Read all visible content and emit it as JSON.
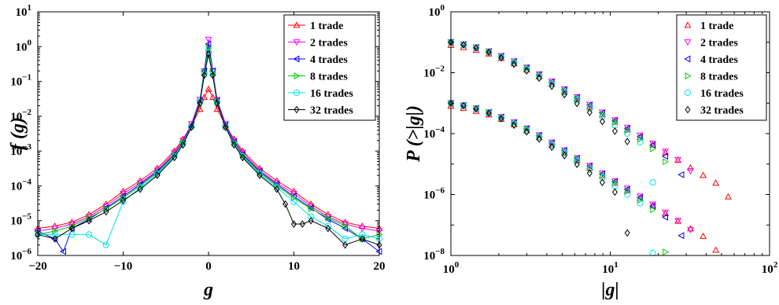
{
  "chart_data": [
    {
      "type": "line",
      "xlabel": "g",
      "ylabel": "f (g)",
      "xlim": [
        -20,
        20
      ],
      "ylim_log10": [
        -6,
        1
      ],
      "y_scale": "log",
      "x_tick_labels": [
        "−20",
        "−10",
        "0",
        "10",
        "20"
      ],
      "y_tick_labels": [
        "10",
        "10",
        "10",
        "10",
        "10",
        "10",
        "10",
        "10"
      ],
      "y_tick_exponents": [
        "−6",
        "−5",
        "−4",
        "−3",
        "−2",
        "−1",
        "0",
        "1"
      ],
      "legend_position": "top-right",
      "series": [
        {
          "name": "1 trade",
          "color": "#ff0000",
          "marker": "triangle-up",
          "x": [
            -20,
            -18,
            -16,
            -14,
            -12,
            -10,
            -8,
            -6,
            -4,
            -3,
            -2,
            -1,
            -0.5,
            0,
            0.5,
            1,
            2,
            3,
            4,
            6,
            8,
            10,
            12,
            14,
            16,
            18,
            20
          ],
          "y": [
            6e-06,
            7e-06,
            9e-06,
            1.5e-05,
            3e-05,
            7e-05,
            0.00014,
            0.00032,
            0.001,
            0.0022,
            0.0055,
            0.016,
            0.035,
            0.06,
            0.035,
            0.016,
            0.0055,
            0.0022,
            0.001,
            0.00032,
            0.00014,
            7e-05,
            3e-05,
            1.5e-05,
            9e-06,
            7e-06,
            6e-06
          ]
        },
        {
          "name": "2 trades",
          "color": "#ff00ff",
          "marker": "triangle-down",
          "x": [
            -20,
            -18,
            -16,
            -14,
            -12,
            -10,
            -8,
            -6,
            -4,
            -3,
            -2,
            -1,
            -0.5,
            0,
            0.5,
            1,
            2,
            3,
            4,
            6,
            8,
            10,
            12,
            14,
            16,
            18,
            20
          ],
          "y": [
            5e-06,
            6e-06,
            8e-06,
            1.3e-05,
            2.6e-05,
            6e-05,
            0.00012,
            0.00028,
            0.0009,
            0.002,
            0.006,
            0.03,
            0.2,
            1.6,
            0.2,
            0.03,
            0.006,
            0.002,
            0.0009,
            0.00028,
            0.00012,
            6e-05,
            2.6e-05,
            1.3e-05,
            8e-06,
            6e-06,
            5e-06
          ]
        },
        {
          "name": "4 trades",
          "color": "#0000ff",
          "marker": "triangle-left",
          "x": [
            -20,
            -18,
            -17,
            -16,
            -14,
            -12,
            -10,
            -8,
            -6,
            -4,
            -3,
            -2,
            -1,
            -0.5,
            0,
            0.5,
            1,
            2,
            3,
            4,
            6,
            8,
            10,
            12,
            14,
            16,
            18,
            20
          ],
          "y": [
            5e-06,
            3e-06,
            1.3e-06,
            6e-06,
            1.1e-05,
            2.3e-05,
            5e-05,
            0.00011,
            0.00026,
            0.0008,
            0.0018,
            0.0055,
            0.028,
            0.2,
            1.2,
            0.2,
            0.028,
            0.0055,
            0.0018,
            0.0008,
            0.00026,
            0.00011,
            5e-05,
            2.3e-05,
            1.1e-05,
            6e-06,
            3e-06,
            1.3e-06
          ]
        },
        {
          "name": "8 trades",
          "color": "#00cc00",
          "marker": "triangle-right",
          "x": [
            -20,
            -18,
            -16,
            -14,
            -12,
            -10,
            -8,
            -6,
            -4,
            -3,
            -2,
            -1,
            -0.5,
            0,
            0.5,
            1,
            2,
            3,
            4,
            6,
            8,
            10,
            12,
            14,
            16,
            18,
            20
          ],
          "y": [
            4e-06,
            5e-06,
            7e-06,
            1.2e-05,
            2.2e-05,
            4.5e-05,
            0.0001,
            0.00024,
            0.00075,
            0.0017,
            0.005,
            0.026,
            0.18,
            0.9,
            0.18,
            0.026,
            0.005,
            0.0017,
            0.00075,
            0.00024,
            0.0001,
            4.5e-05,
            2.2e-05,
            1.2e-05,
            7e-06,
            3e-06,
            4e-06
          ]
        },
        {
          "name": "16 trades",
          "color": "#00e5e5",
          "marker": "circle",
          "x": [
            -20,
            -18,
            -16,
            -14,
            -12,
            -10,
            -8,
            -6,
            -4,
            -3,
            -2,
            -1,
            -0.5,
            0,
            0.5,
            1,
            2,
            3,
            4,
            6,
            8,
            10,
            12,
            14,
            16,
            18,
            20
          ],
          "y": [
            4e-06,
            4e-06,
            4e-06,
            4e-06,
            2e-06,
            3.5e-05,
            9e-05,
            0.00022,
            0.0007,
            0.0016,
            0.005,
            0.025,
            0.16,
            0.7,
            0.16,
            0.025,
            0.005,
            0.0016,
            0.0007,
            0.00022,
            9e-05,
            3.5e-05,
            1.3e-05,
            7e-06,
            3e-06,
            4e-06,
            3e-06
          ]
        },
        {
          "name": "32 trades",
          "color": "#000000",
          "marker": "diamond",
          "x": [
            -20,
            -18,
            -16,
            -14,
            -12,
            -10,
            -8,
            -6,
            -4,
            -3,
            -2,
            -1,
            -0.5,
            0,
            0.5,
            1,
            2,
            3,
            4,
            6,
            8,
            9,
            10,
            11,
            12,
            14,
            16,
            18,
            20
          ],
          "y": [
            4e-06,
            3e-06,
            6e-06,
            1e-05,
            1.8e-05,
            3.8e-05,
            8e-05,
            0.0002,
            0.00065,
            0.0015,
            0.0048,
            0.024,
            0.15,
            0.6,
            0.15,
            0.024,
            0.0048,
            0.0015,
            0.00065,
            0.0002,
            8e-05,
            3e-05,
            8e-06,
            8e-06,
            1e-05,
            6e-06,
            2e-06,
            3e-06,
            2e-06
          ]
        }
      ]
    },
    {
      "type": "scatter",
      "xlabel": "|g|",
      "ylabel": "P (>|g|)",
      "x_scale": "log",
      "y_scale": "log",
      "xlim_log10": [
        0,
        2
      ],
      "ylim_log10": [
        -8,
        0
      ],
      "x_tick_labels": [
        "10",
        "10",
        "10"
      ],
      "x_tick_exponents": [
        "0",
        "1",
        "2"
      ],
      "y_tick_labels": [
        "10",
        "10",
        "10",
        "10",
        "10"
      ],
      "y_tick_exponents": [
        "−8",
        "−6",
        "−4",
        "−2",
        "0"
      ],
      "legend_position": "top-right",
      "series": [
        {
          "name": "1 trade",
          "color": "#ff0000",
          "marker": "triangle-up",
          "x": [
            1,
            1.2,
            1.44,
            1.73,
            2.07,
            2.49,
            2.99,
            3.58,
            4.3,
            5.16,
            6.19,
            7.43,
            8.92,
            10.7,
            12.8,
            15.4,
            18.5,
            22.2,
            26.6,
            31.9,
            38.3,
            46,
            55
          ],
          "y": [
            0.08,
            0.068,
            0.055,
            0.042,
            0.03,
            0.02,
            0.0125,
            0.0075,
            0.0043,
            0.0024,
            0.00135,
            0.00075,
            0.00042,
            0.00024,
            0.000135,
            7.6e-05,
            4.3e-05,
            2.4e-05,
            1.35e-05,
            7.6e-06,
            4.3e-06,
            2.4e-06,
            8.5e-07
          ]
        },
        {
          "name": "2 trades",
          "color": "#ff00ff",
          "marker": "triangle-down",
          "x": [
            1,
            1.2,
            1.44,
            1.73,
            2.07,
            2.49,
            2.99,
            3.58,
            4.3,
            5.16,
            6.19,
            7.43,
            8.92,
            10.7,
            12.8,
            15.4,
            18.5,
            22.2,
            26.6,
            31.9
          ],
          "y": [
            0.1,
            0.085,
            0.068,
            0.051,
            0.036,
            0.024,
            0.015,
            0.009,
            0.0052,
            0.0029,
            0.0016,
            0.0009,
            0.0005,
            0.00028,
            0.00016,
            8.8e-05,
            4.8e-05,
            2.6e-05,
            1.4e-05,
            6e-06
          ]
        },
        {
          "name": "4 trades",
          "color": "#0000ff",
          "marker": "triangle-left",
          "x": [
            1,
            1.2,
            1.44,
            1.73,
            2.07,
            2.49,
            2.99,
            3.58,
            4.3,
            5.16,
            6.19,
            7.43,
            8.92,
            10.7,
            12.8,
            15.4,
            18.5,
            22.2,
            28
          ],
          "y": [
            0.1,
            0.085,
            0.068,
            0.05,
            0.035,
            0.023,
            0.0145,
            0.0087,
            0.005,
            0.0028,
            0.00155,
            0.00086,
            0.00048,
            0.00027,
            0.000148,
            8e-05,
            4.2e-05,
            1.8e-05,
            4.5e-06
          ]
        },
        {
          "name": "8 trades",
          "color": "#00cc00",
          "marker": "triangle-right",
          "x": [
            1,
            1.2,
            1.44,
            1.73,
            2.07,
            2.49,
            2.99,
            3.58,
            4.3,
            5.16,
            6.19,
            7.43,
            8.92,
            10.7,
            12.8,
            15.4,
            18.5,
            22.2
          ],
          "y": [
            0.1,
            0.084,
            0.067,
            0.049,
            0.034,
            0.022,
            0.014,
            0.0083,
            0.0047,
            0.0026,
            0.00143,
            0.00078,
            0.00043,
            0.00024,
            0.000128,
            6.6e-05,
            3.2e-05,
            1.2e-05
          ]
        },
        {
          "name": "16 trades",
          "color": "#00e5e5",
          "marker": "circle",
          "x": [
            1,
            1.2,
            1.44,
            1.73,
            2.07,
            2.49,
            2.99,
            3.58,
            4.3,
            5.16,
            6.19,
            7.43,
            8.92,
            10.7,
            12.8,
            15.4,
            18.5
          ],
          "y": [
            0.1,
            0.084,
            0.066,
            0.048,
            0.033,
            0.021,
            0.013,
            0.0077,
            0.0043,
            0.0023,
            0.00125,
            0.00067,
            0.00036,
            0.00019,
            0.0001,
            5.2e-05,
            2.5e-06
          ]
        },
        {
          "name": "32 trades",
          "color": "#000000",
          "marker": "diamond",
          "x": [
            1,
            1.2,
            1.44,
            1.73,
            2.07,
            2.49,
            2.99,
            3.58,
            4.3,
            5.16,
            6.19,
            7.43,
            8.92,
            10.7,
            12.8
          ],
          "y": [
            0.1,
            0.083,
            0.065,
            0.047,
            0.031,
            0.019,
            0.0115,
            0.0066,
            0.0036,
            0.0019,
            0.00098,
            0.0005,
            0.00025,
            0.00012,
            5.5e-05
          ]
        },
        {
          "name": "",
          "color": "#ff0000",
          "marker": "triangle-up",
          "x": [
            1,
            1.2,
            1.44,
            1.73,
            2.07,
            2.49,
            2.99,
            3.58,
            4.3,
            5.16,
            6.19,
            7.43,
            8.92,
            10.7,
            12.8,
            15.4,
            18.5,
            22.2,
            26.6,
            31.9,
            38.3,
            46
          ],
          "y": [
            0.0008,
            0.00068,
            0.00055,
            0.00042,
            0.0003,
            0.0002,
            0.000125,
            7.5e-05,
            4.3e-05,
            2.4e-05,
            1.35e-05,
            7.5e-06,
            4.2e-06,
            2.4e-06,
            1.35e-06,
            7.6e-07,
            4.3e-07,
            2.4e-07,
            1.35e-07,
            7.6e-08,
            4.3e-08,
            1.5e-08
          ]
        },
        {
          "name": "",
          "color": "#ff00ff",
          "marker": "triangle-down",
          "x": [
            1,
            1.2,
            1.44,
            1.73,
            2.07,
            2.49,
            2.99,
            3.58,
            4.3,
            5.16,
            6.19,
            7.43,
            8.92,
            10.7,
            12.8,
            15.4,
            18.5,
            22.2,
            26.6,
            31.9
          ],
          "y": [
            0.001,
            0.00085,
            0.00068,
            0.00051,
            0.00036,
            0.00024,
            0.00015,
            9e-05,
            5.2e-05,
            2.9e-05,
            1.6e-05,
            9e-06,
            5e-06,
            2.8e-06,
            1.6e-06,
            8.8e-07,
            4.8e-07,
            2.6e-07,
            1.4e-07,
            7e-08
          ]
        },
        {
          "name": "",
          "color": "#0000ff",
          "marker": "triangle-left",
          "x": [
            1,
            1.2,
            1.44,
            1.73,
            2.07,
            2.49,
            2.99,
            3.58,
            4.3,
            5.16,
            6.19,
            7.43,
            8.92,
            10.7,
            12.8,
            15.4,
            18.5,
            22.2,
            28
          ],
          "y": [
            0.001,
            0.00085,
            0.00068,
            0.0005,
            0.00035,
            0.00023,
            0.000145,
            8.7e-05,
            5e-05,
            2.8e-05,
            1.55e-05,
            8.6e-06,
            4.8e-06,
            2.7e-06,
            1.48e-06,
            8e-07,
            4.2e-07,
            1.8e-07,
            4.5e-08
          ]
        },
        {
          "name": "",
          "color": "#00cc00",
          "marker": "triangle-right",
          "x": [
            1,
            1.2,
            1.44,
            1.73,
            2.07,
            2.49,
            2.99,
            3.58,
            4.3,
            5.16,
            6.19,
            7.43,
            8.92,
            10.7,
            12.8,
            15.4,
            18.5,
            22.2
          ],
          "y": [
            0.001,
            0.00084,
            0.00067,
            0.00049,
            0.00034,
            0.00022,
            0.00014,
            8.3e-05,
            4.7e-05,
            2.6e-05,
            1.43e-05,
            7.8e-06,
            4.3e-06,
            2.4e-06,
            1.28e-06,
            6.6e-07,
            3.2e-07,
            1.3e-08
          ]
        },
        {
          "name": "",
          "color": "#00e5e5",
          "marker": "circle",
          "x": [
            1,
            1.2,
            1.44,
            1.73,
            2.07,
            2.49,
            2.99,
            3.58,
            4.3,
            5.16,
            6.19,
            7.43,
            8.92,
            10.7,
            12.8,
            15.4,
            18.5
          ],
          "y": [
            0.001,
            0.00084,
            0.00066,
            0.00048,
            0.00033,
            0.00021,
            0.00013,
            7.7e-05,
            4.3e-05,
            2.3e-05,
            1.25e-05,
            6.7e-06,
            3.6e-06,
            1.9e-06,
            1e-06,
            5.2e-07,
            1.2e-08
          ]
        },
        {
          "name": "",
          "color": "#000000",
          "marker": "diamond",
          "x": [
            1,
            1.2,
            1.44,
            1.73,
            2.07,
            2.49,
            2.99,
            3.58,
            4.3,
            5.16,
            6.19,
            7.43,
            8.92,
            10.7,
            12.8
          ],
          "y": [
            0.001,
            0.00083,
            0.00065,
            0.00047,
            0.00031,
            0.00019,
            0.000115,
            6.6e-05,
            3.6e-05,
            1.9e-05,
            9.8e-06,
            5e-06,
            2.5e-06,
            1.2e-06,
            5.5e-08
          ]
        }
      ]
    }
  ]
}
